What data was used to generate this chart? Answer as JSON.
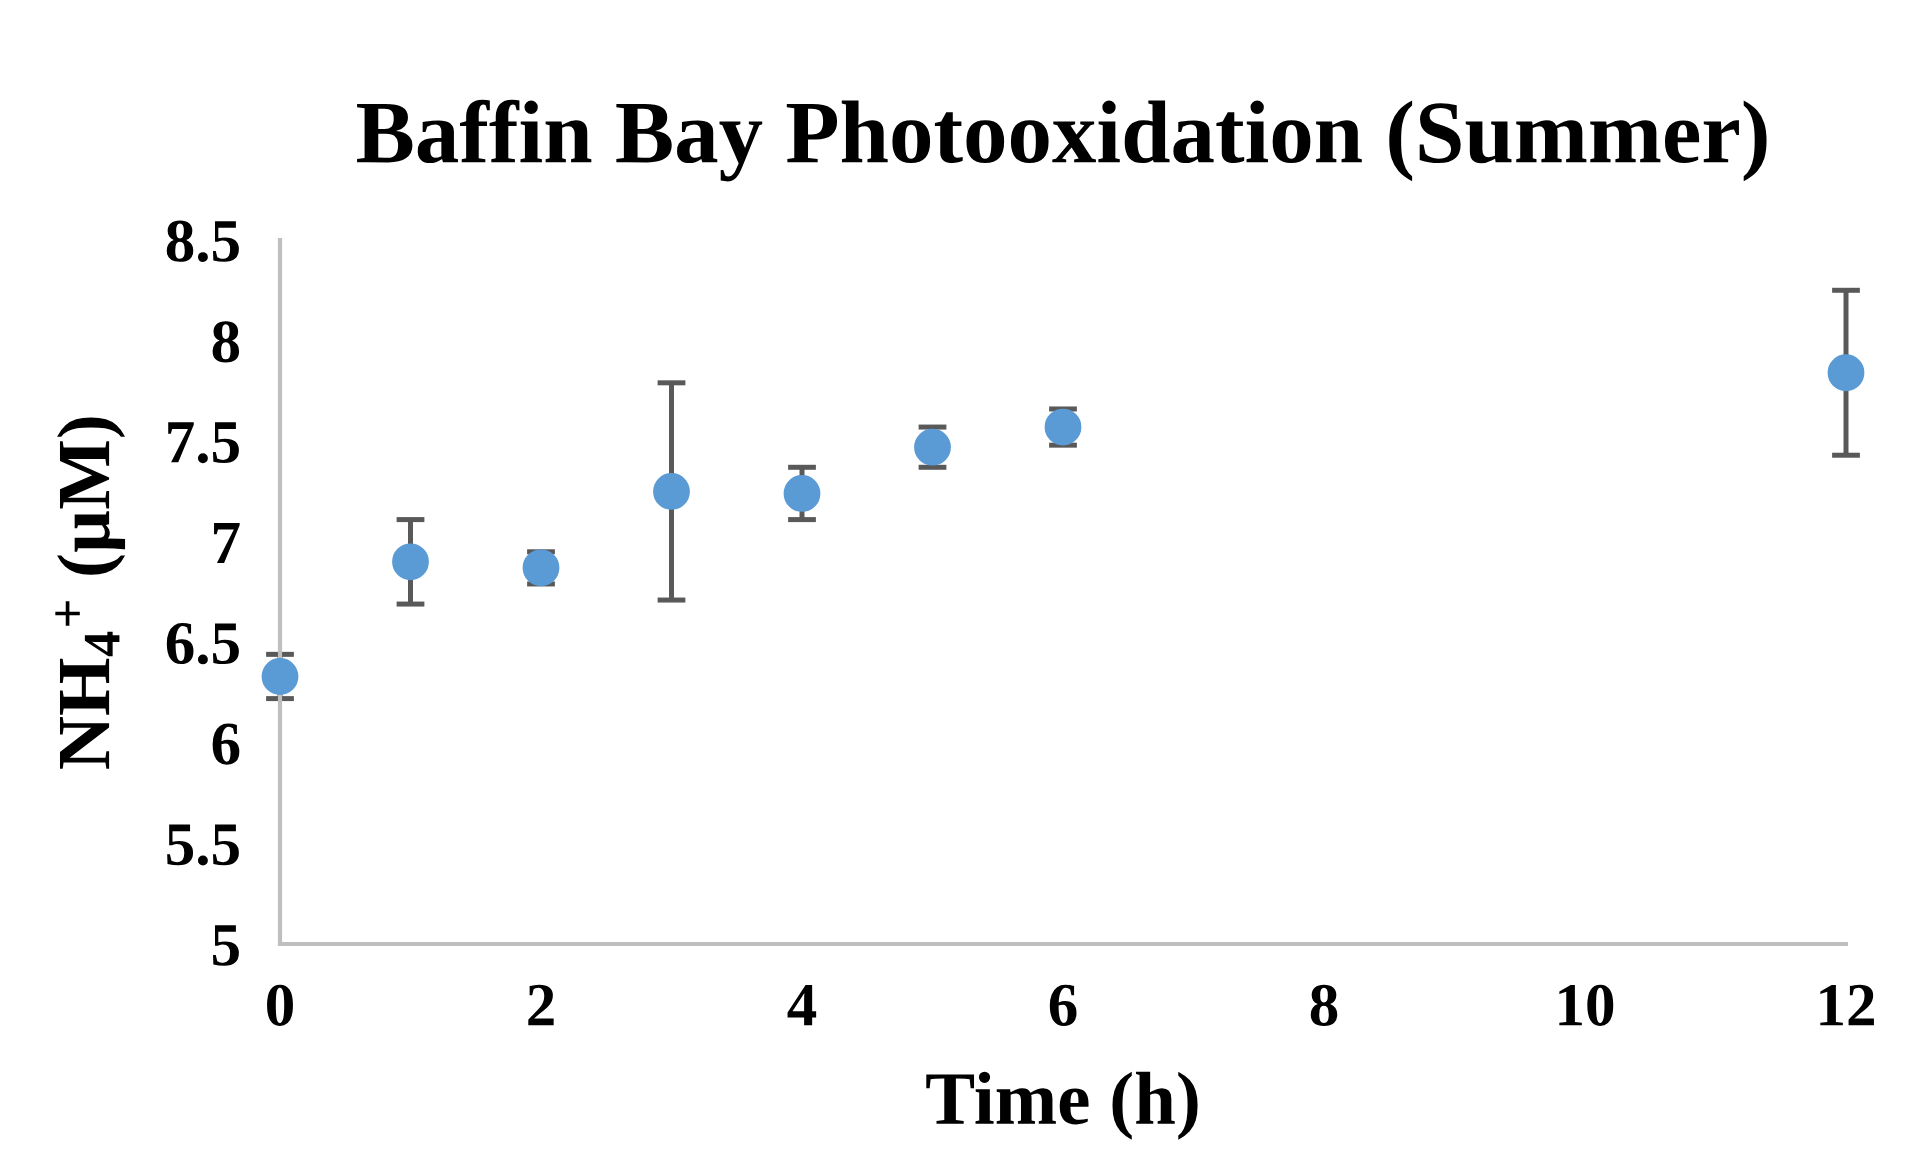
{
  "chart_data": {
    "type": "scatter",
    "title": "Baffin Bay Photooxidation (Summer)",
    "xlabel": "Time (h)",
    "ylabel": "NH$_{4}$$^{+}$ (µM)",
    "x": [
      0,
      1,
      2,
      3,
      4,
      5,
      6,
      12
    ],
    "series": [
      {
        "color": "#5b9bd5",
        "values": [
          6.33,
          6.9,
          6.87,
          7.25,
          7.24,
          7.47,
          7.57,
          7.84
        ],
        "errors": [
          0.11,
          0.21,
          0.08,
          0.54,
          0.13,
          0.1,
          0.09,
          0.41
        ]
      }
    ],
    "xlim": [
      0,
      12
    ],
    "ylim": [
      5,
      8.5
    ],
    "xticks": [
      0,
      2,
      4,
      6,
      8,
      10,
      12
    ],
    "yticks": [
      5,
      5.5,
      6,
      6.5,
      7,
      7.5,
      8,
      8.5
    ],
    "marker": "circle",
    "grid": false,
    "legend": false
  }
}
